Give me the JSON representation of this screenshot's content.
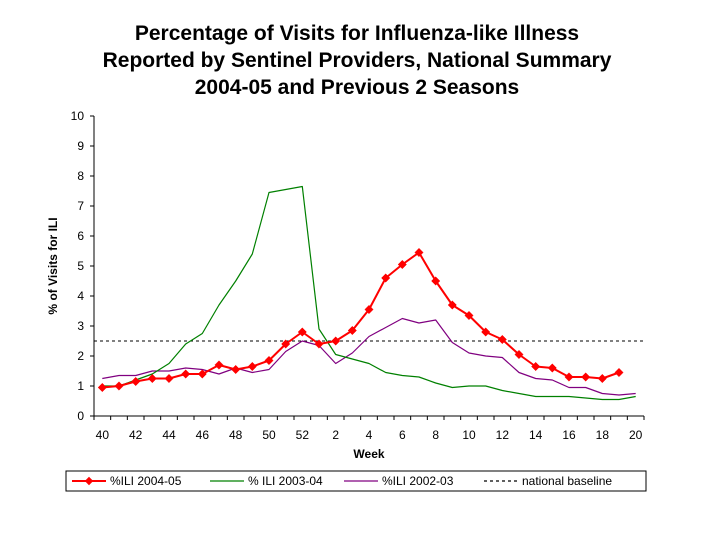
{
  "chart_data": {
    "type": "line",
    "title_lines": [
      "Percentage of Visits for Influenza-like Illness",
      "Reported by Sentinel Providers, National Summary",
      "2004-05 and Previous 2 Seasons"
    ],
    "xlabel": "Week",
    "ylabel": "% of Visits for ILI",
    "ylim": [
      0,
      10
    ],
    "yticks": [
      "0",
      "1",
      "2",
      "3",
      "4",
      "5",
      "6",
      "7",
      "8",
      "9",
      "10"
    ],
    "x": [
      40,
      41,
      42,
      43,
      44,
      45,
      46,
      47,
      48,
      49,
      50,
      51,
      52,
      1,
      2,
      3,
      4,
      5,
      6,
      7,
      8,
      9,
      10,
      11,
      12,
      13,
      14,
      15,
      16,
      17,
      18,
      19,
      20
    ],
    "xtick_labels": [
      "40",
      "42",
      "44",
      "46",
      "48",
      "50",
      "52",
      "2",
      "4",
      "6",
      "8",
      "10",
      "12",
      "14",
      "16",
      "18",
      "20"
    ],
    "series": [
      {
        "name": "%ILI 2004-05",
        "color": "#ff0000",
        "marker": "diamond",
        "values": [
          0.95,
          1.0,
          1.15,
          1.25,
          1.25,
          1.4,
          1.4,
          1.7,
          1.55,
          1.65,
          1.85,
          2.4,
          2.8,
          2.4,
          2.5,
          2.85,
          3.55,
          4.6,
          5.05,
          5.45,
          4.5,
          3.7,
          3.35,
          2.8,
          2.55,
          2.05,
          1.65,
          1.6,
          1.3,
          1.3,
          1.25,
          1.45,
          null
        ]
      },
      {
        "name": "% ILI 2003-04",
        "color": "#008000",
        "values": [
          1.0,
          1.0,
          1.2,
          1.4,
          1.75,
          2.4,
          2.75,
          3.7,
          4.5,
          5.4,
          7.45,
          7.55,
          7.65,
          2.9,
          2.05,
          1.9,
          1.75,
          1.45,
          1.35,
          1.3,
          1.1,
          0.95,
          1.0,
          1.0,
          0.85,
          0.75,
          0.65,
          0.65,
          0.65,
          0.6,
          0.55,
          0.55,
          0.65
        ]
      },
      {
        "name": "%ILI 2002-03",
        "color": "#800080",
        "values": [
          1.25,
          1.35,
          1.35,
          1.5,
          1.5,
          1.6,
          1.55,
          1.4,
          1.6,
          1.45,
          1.55,
          2.15,
          2.5,
          2.35,
          1.75,
          2.1,
          2.65,
          2.95,
          3.25,
          3.1,
          3.2,
          2.45,
          2.1,
          2.0,
          1.95,
          1.45,
          1.25,
          1.2,
          0.95,
          0.95,
          0.75,
          0.7,
          0.75
        ]
      }
    ],
    "baseline": {
      "name": "national baseline",
      "value": 2.5,
      "style": "dashed"
    },
    "legend": {
      "position": "bottom"
    },
    "grid": false
  }
}
